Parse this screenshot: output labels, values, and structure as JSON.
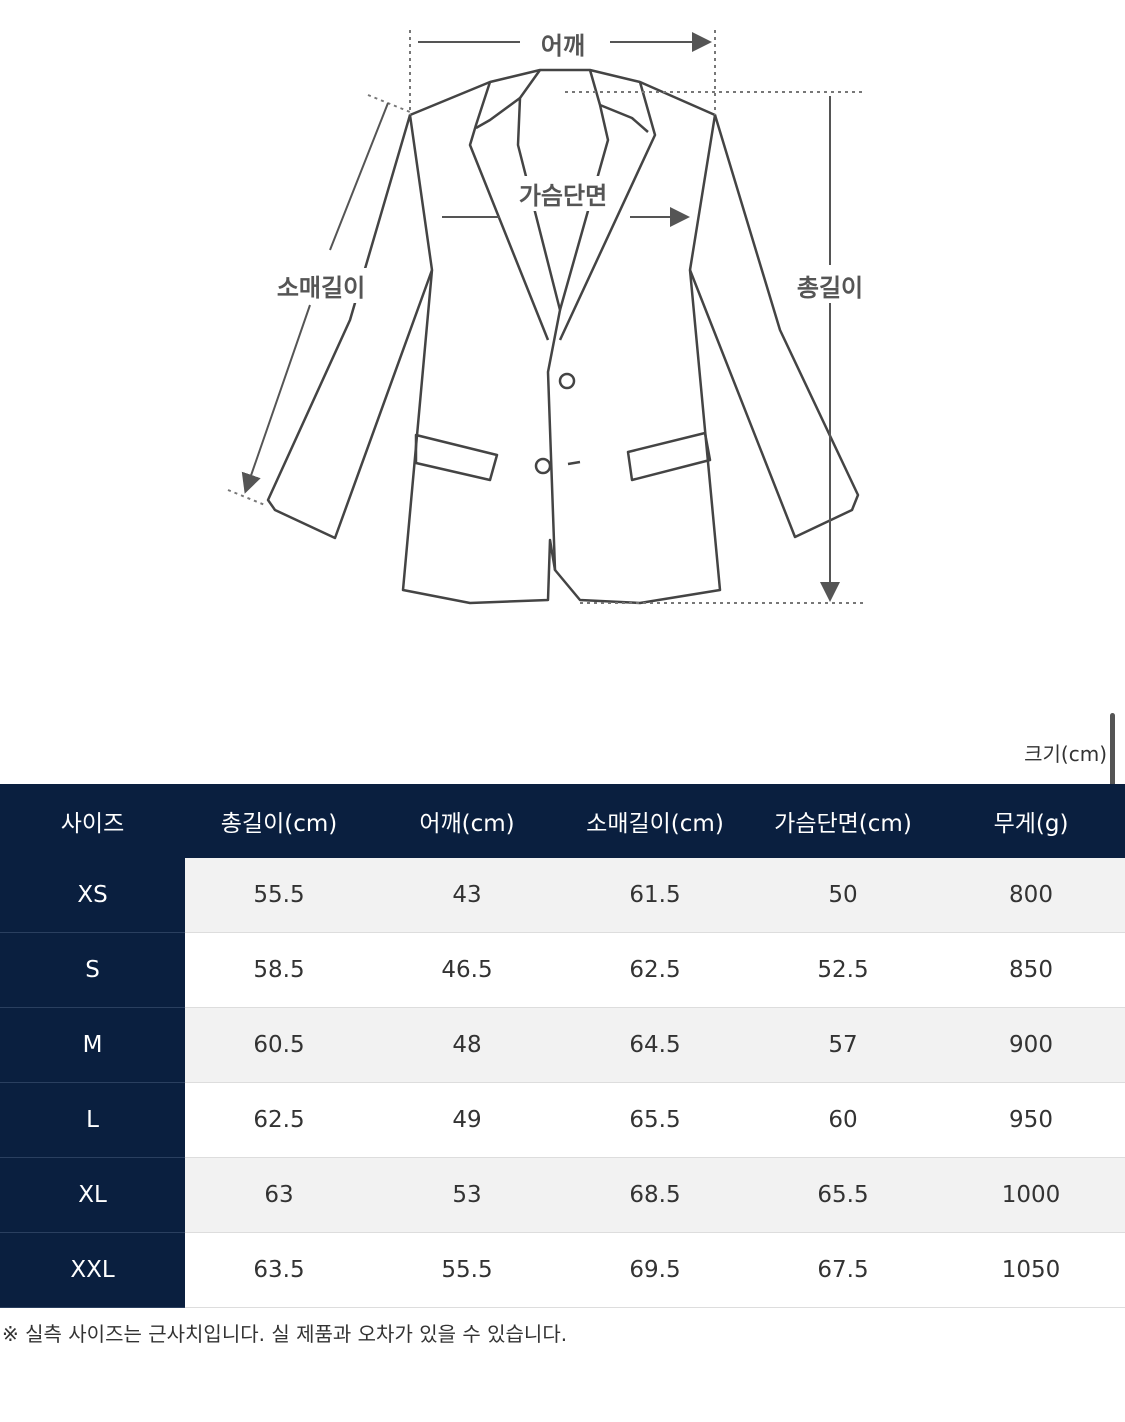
{
  "diagram": {
    "labels": {
      "shoulder": "어깨",
      "chest": "가슴단면",
      "sleeve": "소매길이",
      "total_length": "총길이"
    },
    "line_color": "#444444"
  },
  "unit_label": "크기(cm)",
  "table": {
    "header_color": "#0a1f3f",
    "headers": [
      "사이즈",
      "총길이(cm)",
      "어깨(cm)",
      "소매길이(cm)",
      "가슴단면(cm)",
      "무게(g)"
    ],
    "rows": [
      [
        "XS",
        "55.5",
        "43",
        "61.5",
        "50",
        "800"
      ],
      [
        "S",
        "58.5",
        "46.5",
        "62.5",
        "52.5",
        "850"
      ],
      [
        "M",
        "60.5",
        "48",
        "64.5",
        "57",
        "900"
      ],
      [
        "L",
        "62.5",
        "49",
        "65.5",
        "60",
        "950"
      ],
      [
        "XL",
        "63",
        "53",
        "68.5",
        "65.5",
        "1000"
      ],
      [
        "XXL",
        "63.5",
        "55.5",
        "69.5",
        "67.5",
        "1050"
      ]
    ]
  },
  "note": "※ 실측 사이즈는 근사치입니다. 실 제품과 오차가 있을 수 있습니다."
}
